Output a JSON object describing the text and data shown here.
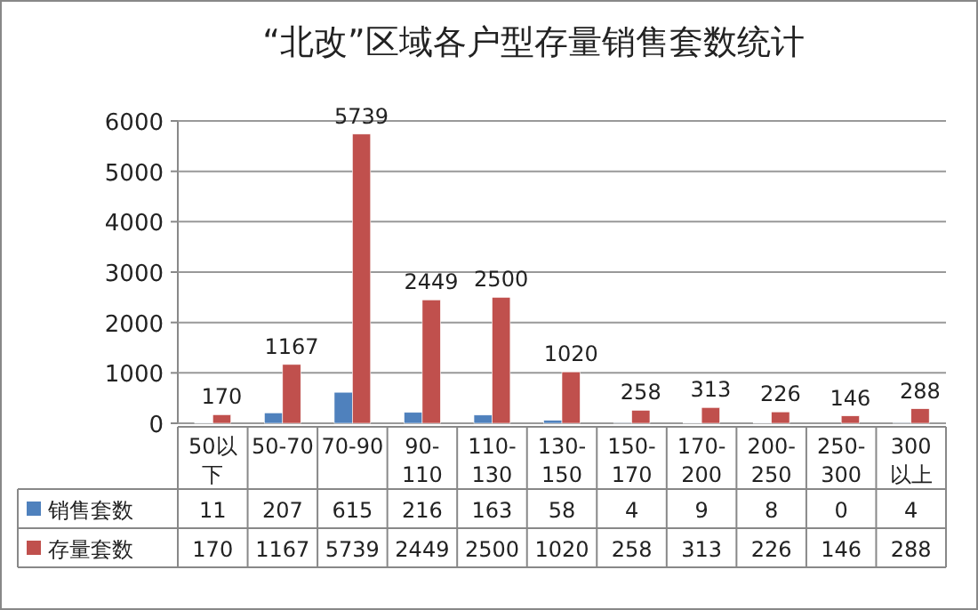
{
  "chart_data": {
    "type": "bar",
    "title": "“北改”区域各户型存量销售套数统计",
    "categories": [
      "50以下",
      "50-70",
      "70-90",
      "90-110",
      "110-130",
      "130-150",
      "150-170",
      "170-200",
      "200-250",
      "250-300",
      "300以上"
    ],
    "series": [
      {
        "name": "销售套数",
        "color": "#4f81bd",
        "values": [
          11,
          207,
          615,
          216,
          163,
          58,
          4,
          9,
          8,
          0,
          4
        ]
      },
      {
        "name": "存量套数",
        "color": "#c0504d",
        "values": [
          170,
          1167,
          5739,
          2449,
          2500,
          1020,
          258,
          313,
          226,
          146,
          288
        ],
        "value_labels": [
          "170",
          "1167",
          "5739",
          "2449",
          "2500",
          "1020",
          "258",
          "313",
          "226",
          "146",
          "288"
        ]
      }
    ],
    "ylim": [
      0,
      6000
    ],
    "yticks": [
      0,
      1000,
      2000,
      3000,
      4000,
      5000,
      6000
    ],
    "grid": "y",
    "legend": "bottom",
    "data_labels": true
  }
}
